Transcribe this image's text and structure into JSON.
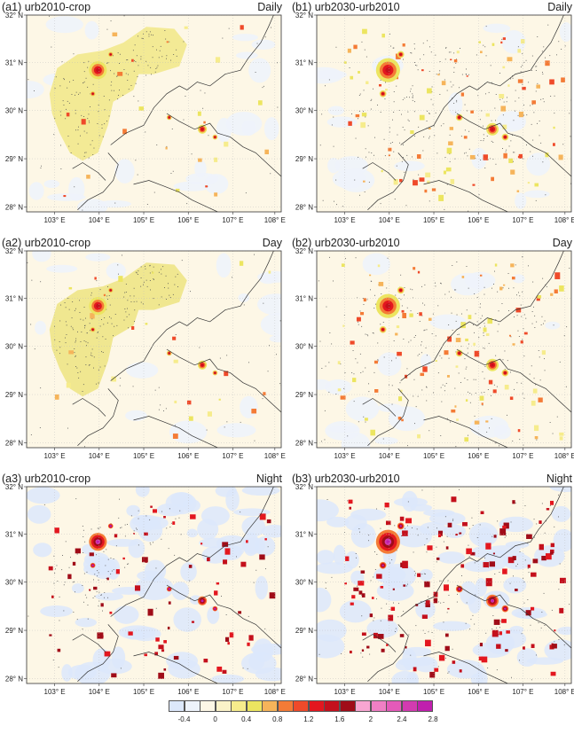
{
  "panels": [
    {
      "id": "a1",
      "title": "(a1) urb2010-crop",
      "time": "Daily",
      "mode": "a-daily"
    },
    {
      "id": "b1",
      "title": "(b1) urb2030-urb2010",
      "time": "Daily",
      "mode": "b-daily"
    },
    {
      "id": "a2",
      "title": "(a2) urb2010-crop",
      "time": "Day",
      "mode": "a-day"
    },
    {
      "id": "b2",
      "title": "(b2) urb2030-urb2010",
      "time": "Day",
      "mode": "b-day"
    },
    {
      "id": "a3",
      "title": "(a3) urb2010-crop",
      "time": "Night",
      "mode": "a-night"
    },
    {
      "id": "b3",
      "title": "(b3) urb2030-urb2010",
      "time": "Night",
      "mode": "b-night"
    }
  ],
  "axes": {
    "lat_labels": [
      "32° N",
      "31° N",
      "30° N",
      "29° N",
      "28° N"
    ],
    "lon_labels": [
      "103° E",
      "104° E",
      "105° E",
      "106° E",
      "107° E",
      "108° E"
    ],
    "lat_range": [
      28,
      32
    ],
    "lon_range": [
      102.3,
      108.6
    ]
  },
  "colorbar": {
    "labels": [
      "-0.4",
      "0",
      "0.4",
      "0.8",
      "1.2",
      "1.6",
      "2",
      "2.4",
      "2.8"
    ],
    "colors": [
      "#dce8fb",
      "#eef3fb",
      "#fdf7e6",
      "#fbf2c8",
      "#f6ec8c",
      "#ece560",
      "#f6b45a",
      "#f47b36",
      "#ef4a2a",
      "#e3171f",
      "#c4101c",
      "#a00c18",
      "#f8a6d2",
      "#f07fc4",
      "#e45ab9",
      "#d23bb0",
      "#c01fae"
    ]
  }
}
